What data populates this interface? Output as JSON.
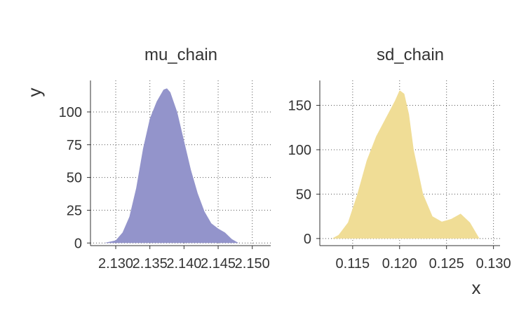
{
  "figure": {
    "xlabel": "x",
    "ylabel": "y"
  },
  "chart_data": [
    {
      "type": "area",
      "title": "mu_chain",
      "color": "#9394CB",
      "xlim": [
        2.1263,
        2.1527
      ],
      "ylim": [
        -2,
        124
      ],
      "xticks": [
        2.13,
        2.135,
        2.14,
        2.145,
        2.15
      ],
      "xtick_labels": [
        "2.130",
        "2.135",
        "2.140",
        "2.145",
        "2.150"
      ],
      "yticks": [
        0,
        25,
        50,
        75,
        100
      ],
      "ytick_labels": [
        "0",
        "25",
        "50",
        "75",
        "100"
      ],
      "grid": true,
      "x": [
        2.1283,
        2.13,
        2.131,
        2.132,
        2.133,
        2.134,
        2.135,
        2.136,
        2.137,
        2.1375,
        2.138,
        2.139,
        2.14,
        2.141,
        2.142,
        2.143,
        2.144,
        2.145,
        2.146,
        2.147,
        2.148
      ],
      "y": [
        0,
        2,
        8,
        20,
        42,
        72,
        95,
        108,
        117,
        118,
        115,
        100,
        78,
        56,
        38,
        24,
        15,
        11,
        8,
        3,
        0
      ]
    },
    {
      "type": "area",
      "title": "sd_chain",
      "color": "#F0DD96",
      "xlim": [
        0.1115,
        0.1307
      ],
      "ylim": [
        -8,
        178
      ],
      "xticks": [
        0.115,
        0.12,
        0.125,
        0.13
      ],
      "xtick_labels": [
        "0.115",
        "0.120",
        "0.125",
        "0.130"
      ],
      "yticks": [
        0,
        50,
        100,
        150
      ],
      "ytick_labels": [
        "0",
        "50",
        "100",
        "150"
      ],
      "grid": true,
      "x": [
        0.1128,
        0.1135,
        0.1145,
        0.1155,
        0.1165,
        0.1175,
        0.1185,
        0.1195,
        0.12,
        0.1205,
        0.121,
        0.1215,
        0.1225,
        0.1235,
        0.1245,
        0.1255,
        0.1265,
        0.1275,
        0.1285
      ],
      "y": [
        0,
        4,
        18,
        50,
        88,
        115,
        135,
        155,
        167,
        163,
        140,
        100,
        50,
        25,
        19,
        22,
        28,
        18,
        0
      ]
    }
  ]
}
